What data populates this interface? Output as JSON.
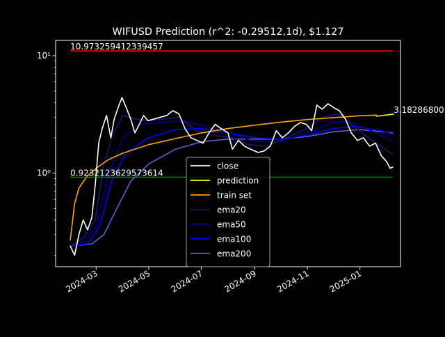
{
  "chart_data": {
    "type": "line",
    "title": "WIFUSD Prediction (r^2: -0.29512,1d), $1.127",
    "xlabel": "",
    "ylabel": "",
    "yscale": "log",
    "ylim": [
      0.16,
      13.5
    ],
    "xlim": [
      "2024-01-14",
      "2025-02-17"
    ],
    "grid": false,
    "legend_position": "lower center",
    "x_tick_labels": [
      "2024-03",
      "2024-05",
      "2024-07",
      "2024-09",
      "2024-11",
      "2025-01"
    ],
    "x_tick_dates": [
      "2024-03-01",
      "2024-05-01",
      "2024-07-01",
      "2024-09-01",
      "2024-11-01",
      "2025-01-01"
    ],
    "y_tick_labels": [
      "10¹",
      "10⁰"
    ],
    "y_tick_values": [
      10,
      1
    ],
    "hlines": [
      {
        "value": 10.973259412339457,
        "label": "10.973259412339457",
        "color": "#ff0000",
        "from": "2024-01-31",
        "to": "2025-02-08"
      },
      {
        "value": 0.9232123629573614,
        "label": "0.9232123629573614",
        "color": "#008000",
        "from": "2024-01-31",
        "to": "2025-02-08"
      }
    ],
    "annotations": [
      {
        "text": "3.18286800",
        "x": "2025-02-09",
        "y": 3.18
      }
    ],
    "series": [
      {
        "name": "close",
        "color": "#ffffff",
        "points": [
          [
            "2024-01-31",
            0.24
          ],
          [
            "2024-02-05",
            0.2
          ],
          [
            "2024-02-10",
            0.3
          ],
          [
            "2024-02-15",
            0.4
          ],
          [
            "2024-02-20",
            0.33
          ],
          [
            "2024-02-25",
            0.42
          ],
          [
            "2024-02-29",
            0.8
          ],
          [
            "2024-03-04",
            1.8
          ],
          [
            "2024-03-08",
            2.4
          ],
          [
            "2024-03-13",
            3.1
          ],
          [
            "2024-03-18",
            2.0
          ],
          [
            "2024-03-22",
            2.9
          ],
          [
            "2024-03-27",
            3.7
          ],
          [
            "2024-03-31",
            4.4
          ],
          [
            "2024-04-05",
            3.6
          ],
          [
            "2024-04-10",
            2.9
          ],
          [
            "2024-04-15",
            2.2
          ],
          [
            "2024-04-20",
            2.6
          ],
          [
            "2024-04-25",
            3.1
          ],
          [
            "2024-04-30",
            2.8
          ],
          [
            "2024-05-08",
            2.9
          ],
          [
            "2024-05-15",
            3.0
          ],
          [
            "2024-05-22",
            3.1
          ],
          [
            "2024-05-29",
            3.4
          ],
          [
            "2024-06-05",
            3.2
          ],
          [
            "2024-06-12",
            2.4
          ],
          [
            "2024-06-19",
            2.0
          ],
          [
            "2024-06-26",
            1.9
          ],
          [
            "2024-07-03",
            1.8
          ],
          [
            "2024-07-10",
            2.2
          ],
          [
            "2024-07-17",
            2.6
          ],
          [
            "2024-07-24",
            2.4
          ],
          [
            "2024-08-01",
            2.2
          ],
          [
            "2024-08-06",
            1.6
          ],
          [
            "2024-08-13",
            1.9
          ],
          [
            "2024-08-20",
            1.7
          ],
          [
            "2024-08-27",
            1.6
          ],
          [
            "2024-09-05",
            1.5
          ],
          [
            "2024-09-12",
            1.55
          ],
          [
            "2024-09-19",
            1.7
          ],
          [
            "2024-09-26",
            2.3
          ],
          [
            "2024-10-03",
            2.0
          ],
          [
            "2024-10-10",
            2.2
          ],
          [
            "2024-10-17",
            2.5
          ],
          [
            "2024-10-24",
            2.7
          ],
          [
            "2024-10-31",
            2.6
          ],
          [
            "2024-11-06",
            2.3
          ],
          [
            "2024-11-12",
            3.8
          ],
          [
            "2024-11-18",
            3.5
          ],
          [
            "2024-11-25",
            3.9
          ],
          [
            "2024-12-02",
            3.6
          ],
          [
            "2024-12-08",
            3.4
          ],
          [
            "2024-12-15",
            2.9
          ],
          [
            "2024-12-22",
            2.2
          ],
          [
            "2024-12-29",
            1.9
          ],
          [
            "2025-01-05",
            2.0
          ],
          [
            "2025-01-12",
            1.7
          ],
          [
            "2025-01-19",
            1.8
          ],
          [
            "2025-01-26",
            1.4
          ],
          [
            "2025-02-01",
            1.25
          ],
          [
            "2025-02-05",
            1.1
          ],
          [
            "2025-02-08",
            1.127
          ]
        ]
      },
      {
        "name": "prediction",
        "color": "#ffff00",
        "points": [
          [
            "2025-01-20",
            3.05
          ],
          [
            "2025-02-09",
            3.18
          ]
        ]
      },
      {
        "name": "train set",
        "color": "#ffa500",
        "points": [
          [
            "2024-01-31",
            0.27
          ],
          [
            "2024-02-05",
            0.55
          ],
          [
            "2024-02-10",
            0.75
          ],
          [
            "2024-02-20",
            0.95
          ],
          [
            "2024-03-01",
            1.1
          ],
          [
            "2024-03-15",
            1.3
          ],
          [
            "2024-04-01",
            1.48
          ],
          [
            "2024-05-01",
            1.75
          ],
          [
            "2024-06-01",
            1.97
          ],
          [
            "2024-07-01",
            2.2
          ],
          [
            "2024-08-01",
            2.4
          ],
          [
            "2024-09-01",
            2.56
          ],
          [
            "2024-10-01",
            2.72
          ],
          [
            "2024-11-01",
            2.86
          ],
          [
            "2024-12-01",
            2.97
          ],
          [
            "2025-01-01",
            3.08
          ],
          [
            "2025-01-20",
            3.12
          ]
        ]
      },
      {
        "name": "ema20",
        "color": "#191970",
        "points": [
          [
            "2024-01-31",
            0.24
          ],
          [
            "2024-02-15",
            0.28
          ],
          [
            "2024-02-29",
            0.4
          ],
          [
            "2024-03-10",
            1.2
          ],
          [
            "2024-03-20",
            2.1
          ],
          [
            "2024-04-01",
            3.1
          ],
          [
            "2024-04-15",
            2.9
          ],
          [
            "2024-05-01",
            2.8
          ],
          [
            "2024-05-20",
            2.9
          ],
          [
            "2024-06-05",
            3.0
          ],
          [
            "2024-06-25",
            2.3
          ],
          [
            "2024-07-15",
            2.1
          ],
          [
            "2024-08-05",
            2.0
          ],
          [
            "2024-08-25",
            1.75
          ],
          [
            "2024-09-15",
            1.7
          ],
          [
            "2024-10-05",
            1.95
          ],
          [
            "2024-10-31",
            2.4
          ],
          [
            "2024-11-20",
            3.0
          ],
          [
            "2024-12-08",
            3.2
          ],
          [
            "2024-12-25",
            2.5
          ],
          [
            "2025-01-15",
            1.9
          ],
          [
            "2025-02-08",
            1.45
          ]
        ]
      },
      {
        "name": "ema50",
        "color": "#00008b",
        "points": [
          [
            "2024-01-31",
            0.24
          ],
          [
            "2024-02-15",
            0.26
          ],
          [
            "2024-03-01",
            0.35
          ],
          [
            "2024-03-15",
            0.95
          ],
          [
            "2024-04-01",
            2.0
          ],
          [
            "2024-04-20",
            2.6
          ],
          [
            "2024-05-15",
            2.7
          ],
          [
            "2024-06-10",
            2.8
          ],
          [
            "2024-07-01",
            2.55
          ],
          [
            "2024-08-01",
            2.2
          ],
          [
            "2024-09-01",
            1.85
          ],
          [
            "2024-10-01",
            1.85
          ],
          [
            "2024-11-01",
            2.2
          ],
          [
            "2024-12-01",
            2.7
          ],
          [
            "2024-12-20",
            2.75
          ],
          [
            "2025-01-20",
            2.2
          ],
          [
            "2025-02-08",
            1.85
          ]
        ]
      },
      {
        "name": "ema100",
        "color": "#0000ff",
        "points": [
          [
            "2024-01-31",
            0.24
          ],
          [
            "2024-02-20",
            0.25
          ],
          [
            "2024-03-05",
            0.35
          ],
          [
            "2024-03-20",
            0.9
          ],
          [
            "2024-04-05",
            1.5
          ],
          [
            "2024-05-01",
            2.0
          ],
          [
            "2024-06-01",
            2.35
          ],
          [
            "2024-07-01",
            2.4
          ],
          [
            "2024-08-01",
            2.2
          ],
          [
            "2024-09-01",
            2.0
          ],
          [
            "2024-10-01",
            1.95
          ],
          [
            "2024-11-01",
            2.1
          ],
          [
            "2024-12-01",
            2.4
          ],
          [
            "2024-12-25",
            2.5
          ],
          [
            "2025-01-25",
            2.3
          ],
          [
            "2025-02-08",
            2.15
          ]
        ]
      },
      {
        "name": "ema200",
        "color": "#6a5acd",
        "points": [
          [
            "2024-01-31",
            0.24
          ],
          [
            "2024-02-25",
            0.25
          ],
          [
            "2024-03-10",
            0.3
          ],
          [
            "2024-03-25",
            0.5
          ],
          [
            "2024-04-10",
            0.85
          ],
          [
            "2024-05-01",
            1.2
          ],
          [
            "2024-06-01",
            1.6
          ],
          [
            "2024-07-01",
            1.85
          ],
          [
            "2024-08-01",
            1.95
          ],
          [
            "2024-09-01",
            1.95
          ],
          [
            "2024-10-01",
            1.95
          ],
          [
            "2024-11-01",
            2.05
          ],
          [
            "2024-12-01",
            2.25
          ],
          [
            "2025-01-01",
            2.35
          ],
          [
            "2025-02-08",
            2.2
          ]
        ]
      }
    ],
    "legend": [
      {
        "label": "close",
        "color": "#ffffff"
      },
      {
        "label": "prediction",
        "color": "#ffff00"
      },
      {
        "label": "train set",
        "color": "#ffa500"
      },
      {
        "label": "ema20",
        "color": "#191970"
      },
      {
        "label": "ema50",
        "color": "#00008b"
      },
      {
        "label": "ema100",
        "color": "#0000ff"
      },
      {
        "label": "ema200",
        "color": "#6a5acd"
      }
    ]
  }
}
